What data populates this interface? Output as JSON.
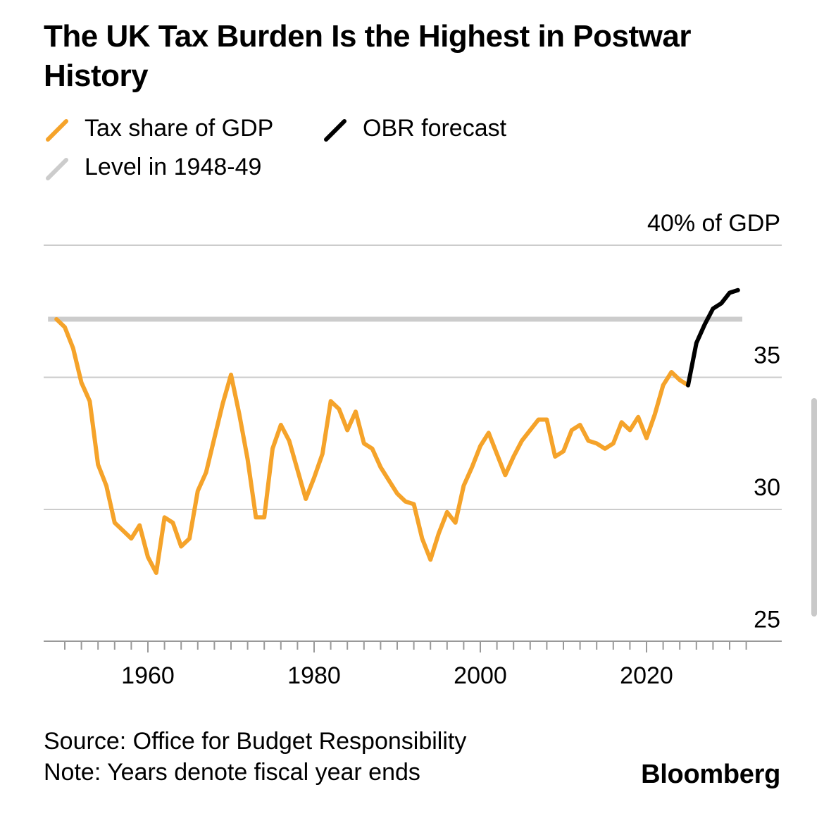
{
  "title": "The UK Tax Burden Is the Highest in Postwar History",
  "legend": [
    {
      "label": "Tax share of GDP",
      "color": "#f5a32a"
    },
    {
      "label": "OBR forecast",
      "color": "#000000"
    },
    {
      "label": "Level in 1948-49",
      "color": "#cccccc"
    }
  ],
  "footer": {
    "source": "Source: Office for Budget Responsibility",
    "note": "Note: Years denote fiscal year ends",
    "brand": "Bloomberg"
  },
  "chart_data": {
    "type": "line",
    "ylabel": "40% of GDP",
    "ylim": [
      24.5,
      40
    ],
    "xlim": [
      1948,
      2033
    ],
    "x_ticks": [
      "1960",
      "1980",
      "2000",
      "2020"
    ],
    "x_tick_values": [
      1960,
      1980,
      2000,
      2020
    ],
    "y_ticks": [
      "35",
      "30",
      "25"
    ],
    "y_tick_values": [
      35,
      30,
      25
    ],
    "gridlines": [
      40,
      35,
      30
    ],
    "grid": true,
    "reference_line": {
      "name": "Level in 1948-49",
      "value": 37.2,
      "x_range": [
        1949,
        2030
      ]
    },
    "series": [
      {
        "name": "Tax share of GDP",
        "color": "#f5a32a",
        "x": [
          1949,
          1950,
          1951,
          1952,
          1953,
          1954,
          1955,
          1956,
          1957,
          1958,
          1959,
          1960,
          1961,
          1962,
          1963,
          1964,
          1965,
          1966,
          1967,
          1968,
          1969,
          1970,
          1971,
          1972,
          1973,
          1974,
          1975,
          1976,
          1977,
          1978,
          1979,
          1980,
          1981,
          1982,
          1983,
          1984,
          1985,
          1986,
          1987,
          1988,
          1989,
          1990,
          1991,
          1992,
          1993,
          1994,
          1995,
          1996,
          1997,
          1998,
          1999,
          2000,
          2001,
          2002,
          2003,
          2004,
          2005,
          2006,
          2007,
          2008,
          2009,
          2010,
          2011,
          2012,
          2013,
          2014,
          2015,
          2016,
          2017,
          2018,
          2019,
          2020,
          2021,
          2022,
          2023,
          2024,
          2025
        ],
        "values": [
          37.2,
          36.9,
          36.1,
          34.8,
          34.1,
          31.7,
          30.9,
          29.5,
          29.2,
          28.9,
          29.4,
          28.2,
          27.6,
          29.7,
          29.5,
          28.6,
          28.9,
          30.7,
          31.4,
          32.7,
          34.0,
          35.1,
          33.6,
          31.9,
          29.7,
          29.7,
          32.3,
          33.2,
          32.6,
          31.5,
          30.4,
          31.2,
          32.1,
          34.1,
          33.8,
          33.0,
          33.7,
          32.5,
          32.3,
          31.6,
          31.1,
          30.6,
          30.3,
          30.2,
          28.9,
          28.1,
          29.1,
          29.9,
          29.5,
          30.9,
          31.6,
          32.4,
          32.9,
          32.1,
          31.3,
          32.0,
          32.6,
          33.0,
          33.4,
          33.4,
          32.0,
          32.2,
          33.0,
          33.2,
          32.6,
          32.5,
          32.3,
          32.5,
          33.3,
          33.0,
          33.5,
          32.7,
          33.6,
          34.7,
          35.2,
          34.9,
          34.7
        ]
      },
      {
        "name": "OBR forecast",
        "color": "#000000",
        "x": [
          2025,
          2026,
          2027,
          2028,
          2029,
          2030,
          2031
        ],
        "values": [
          34.7,
          36.3,
          37.0,
          37.6,
          37.8,
          38.2,
          38.3
        ]
      }
    ]
  }
}
